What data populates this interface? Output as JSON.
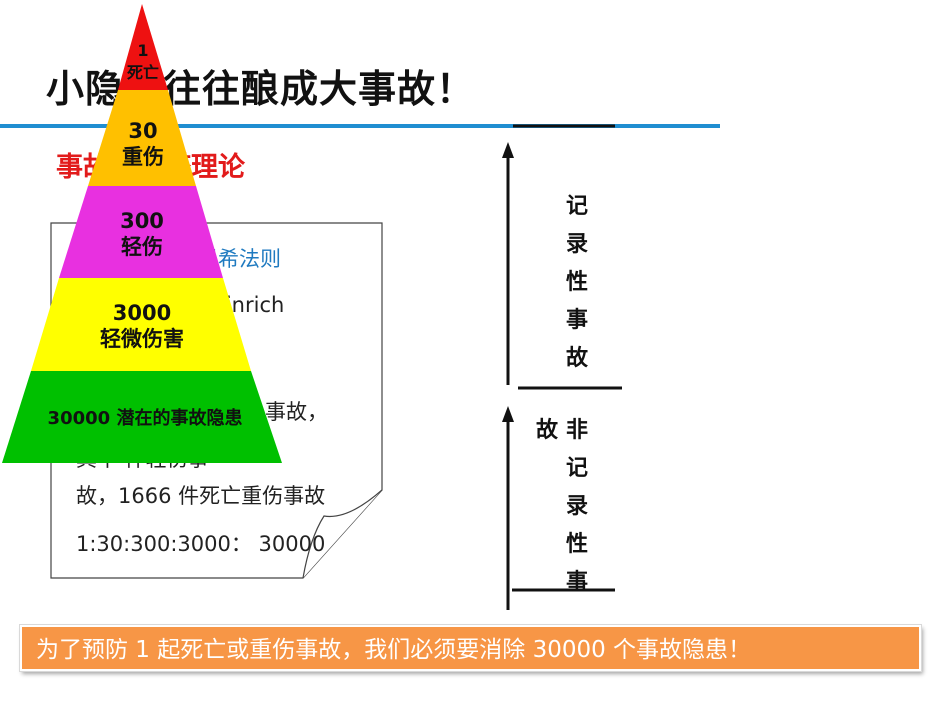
{
  "title": "小隐患往往酿成大事故！",
  "subtitle": "事故冰山塔理论",
  "note": {
    "line1": "海因里希法则",
    "line2": "H.W.Heinrich",
    "line3": "事故，",
    "line4": "其中        件轻伤事",
    "line5": "故，1666 件死亡重伤事故",
    "line6": "1:30:300:3000：  30000"
  },
  "pyramid": {
    "levels": [
      {
        "value": "1",
        "label": "死亡",
        "color": "#ee1111"
      },
      {
        "value": "30",
        "label": "重伤",
        "color": "#ffc000"
      },
      {
        "value": "300",
        "label": "轻伤",
        "color": "#e830e0"
      },
      {
        "value": "3000",
        "label": "轻微伤害",
        "color": "#ffff00"
      },
      {
        "value": "30000",
        "label": "潜在的事故隐患",
        "color": "#00c000"
      }
    ]
  },
  "recordable": [
    "记",
    "录",
    "性",
    "事",
    "故"
  ],
  "nonrecordable": {
    "left": "故",
    "right": [
      "非",
      "记",
      "录",
      "性",
      "事"
    ]
  },
  "banner": "为了预防 1 起死亡或重伤事故，我们必须要消除 30000 个事故隐患！"
}
